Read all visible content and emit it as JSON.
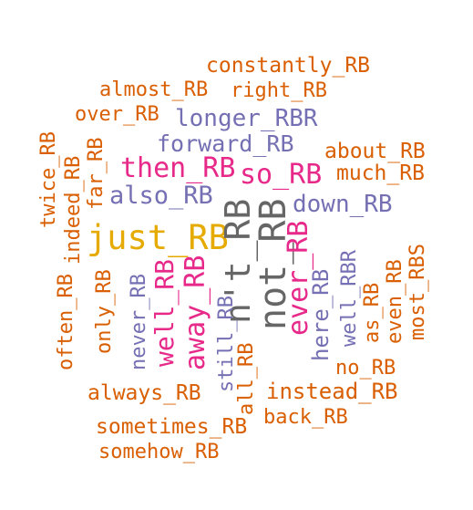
{
  "palette": {
    "orange": "#d95f02",
    "purple": "#7570b3",
    "magenta": "#e7298a",
    "gold": "#e6ab02",
    "gray": "#666666"
  },
  "words": [
    {
      "id": "constantly",
      "text": "constantly_RB",
      "color": "orange"
    },
    {
      "id": "almost",
      "text": "almost_RB",
      "color": "orange"
    },
    {
      "id": "right",
      "text": "right_RB",
      "color": "orange"
    },
    {
      "id": "over",
      "text": "over_RB",
      "color": "orange"
    },
    {
      "id": "longer",
      "text": "longer_RBR",
      "color": "purple"
    },
    {
      "id": "twice",
      "text": "twice_RB",
      "color": "orange"
    },
    {
      "id": "far",
      "text": "far_RB",
      "color": "orange"
    },
    {
      "id": "forward",
      "text": "forward_RB",
      "color": "purple"
    },
    {
      "id": "about",
      "text": "about_RB",
      "color": "orange"
    },
    {
      "id": "indeed",
      "text": "indeed_RB",
      "color": "orange"
    },
    {
      "id": "then",
      "text": "then_RB",
      "color": "magenta"
    },
    {
      "id": "so",
      "text": "so_RB",
      "color": "magenta"
    },
    {
      "id": "much",
      "text": "much_RB",
      "color": "orange"
    },
    {
      "id": "also",
      "text": "also_RB",
      "color": "purple"
    },
    {
      "id": "down",
      "text": "down_RB",
      "color": "purple"
    },
    {
      "id": "nt",
      "text": "n't_RB",
      "color": "gray"
    },
    {
      "id": "not",
      "text": "not_RB",
      "color": "gray"
    },
    {
      "id": "just",
      "text": "just_RB",
      "color": "gold"
    },
    {
      "id": "ever",
      "text": "ever_RB",
      "color": "magenta"
    },
    {
      "id": "most",
      "text": "most_RBS",
      "color": "orange"
    },
    {
      "id": "wellrbr",
      "text": "well_RBR",
      "color": "purple"
    },
    {
      "id": "even",
      "text": "even_RB",
      "color": "orange"
    },
    {
      "id": "here",
      "text": "here_RB",
      "color": "purple"
    },
    {
      "id": "often",
      "text": "often_RB",
      "color": "orange"
    },
    {
      "id": "only",
      "text": "only_RB",
      "color": "orange"
    },
    {
      "id": "never",
      "text": "never_RB",
      "color": "purple"
    },
    {
      "id": "well",
      "text": "well_RB",
      "color": "magenta"
    },
    {
      "id": "away",
      "text": "away_RB",
      "color": "magenta"
    },
    {
      "id": "as",
      "text": "as_RB",
      "color": "orange"
    },
    {
      "id": "still",
      "text": "still_RB",
      "color": "orange"
    },
    {
      "id": "no",
      "text": "no_RB",
      "color": "purple"
    },
    {
      "id": "all",
      "text": "all_RB",
      "color": "orange"
    },
    {
      "id": "always",
      "text": "always_RB",
      "color": "orange"
    },
    {
      "id": "instead",
      "text": "instead_RB",
      "color": "orange"
    },
    {
      "id": "back",
      "text": "back_RB",
      "color": "orange"
    },
    {
      "id": "sometimes",
      "text": "sometimes_RB",
      "color": "orange"
    },
    {
      "id": "somehow",
      "text": "somehow_RB",
      "color": "orange"
    }
  ]
}
